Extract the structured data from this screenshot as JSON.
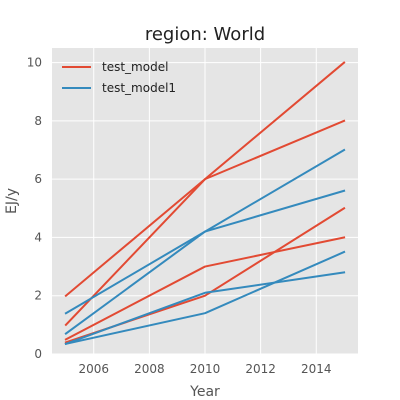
{
  "chart_data": {
    "type": "line",
    "title": "region: World",
    "xlabel": "Year",
    "ylabel": "EJ/y",
    "xlim": [
      2004.5,
      2015.5
    ],
    "ylim": [
      0,
      10.5
    ],
    "xticks": [
      2006,
      2008,
      2010,
      2012,
      2014
    ],
    "yticks": [
      0,
      2,
      4,
      6,
      8,
      10
    ],
    "grid": true,
    "legend_position": "top-left",
    "x": [
      2005,
      2010,
      2015
    ],
    "series": [
      {
        "name": "test_model",
        "color": "#E24A33",
        "values": [
          2.0,
          6.0,
          8.0
        ]
      },
      {
        "name": "test_model",
        "color": "#E24A33",
        "values": [
          1.0,
          6.0,
          10.0
        ]
      },
      {
        "name": "test_model",
        "color": "#E24A33",
        "values": [
          0.5,
          3.0,
          4.0
        ]
      },
      {
        "name": "test_model",
        "color": "#E24A33",
        "values": [
          0.4,
          2.0,
          5.0
        ]
      },
      {
        "name": "test_model1",
        "color": "#348ABD",
        "values": [
          1.4,
          4.2,
          5.6
        ]
      },
      {
        "name": "test_model1",
        "color": "#348ABD",
        "values": [
          0.7,
          4.2,
          7.0
        ]
      },
      {
        "name": "test_model1",
        "color": "#348ABD",
        "values": [
          0.35,
          2.1,
          2.8
        ]
      },
      {
        "name": "test_model1",
        "color": "#348ABD",
        "values": [
          0.35,
          1.4,
          3.5
        ]
      }
    ],
    "legend": [
      {
        "name": "test_model",
        "color": "#E24A33"
      },
      {
        "name": "test_model1",
        "color": "#348ABD"
      }
    ],
    "plot_background": "#E5E5E5",
    "grid_color": "#FFFFFF"
  }
}
